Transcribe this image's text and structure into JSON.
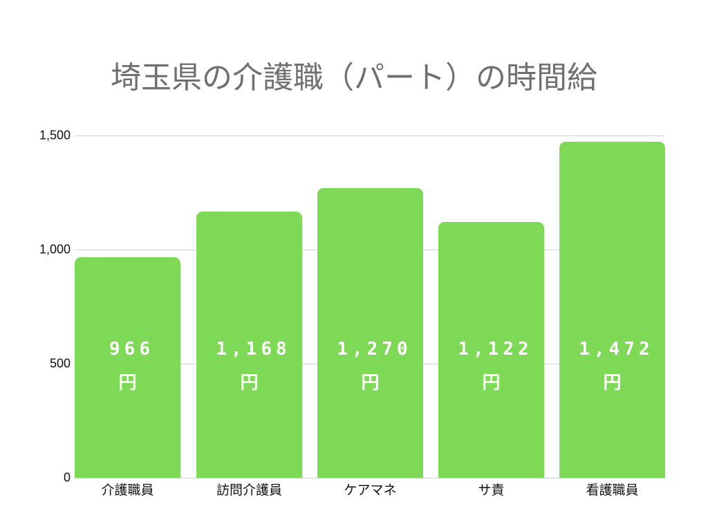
{
  "chart_data": {
    "type": "bar",
    "title": "埼玉県の介護職（パート）の時間給",
    "xlabel": "",
    "ylabel": "",
    "categories": [
      "介護職員",
      "訪問介護員",
      "ケアマネ",
      "サ責",
      "看護職員"
    ],
    "values": [
      966,
      1168,
      1270,
      1122,
      1472
    ],
    "value_labels": [
      "966",
      "1,168",
      "1,270",
      "1,122",
      "1,472"
    ],
    "unit_label": "円",
    "ylim": [
      0,
      1500
    ],
    "yticks": [
      0,
      500,
      1000,
      1500
    ],
    "ytick_labels": [
      "0",
      "500",
      "1,000",
      "1,500"
    ],
    "grid": true,
    "legend": null,
    "bar_color": "#7ed957",
    "title_color": "#707070"
  }
}
